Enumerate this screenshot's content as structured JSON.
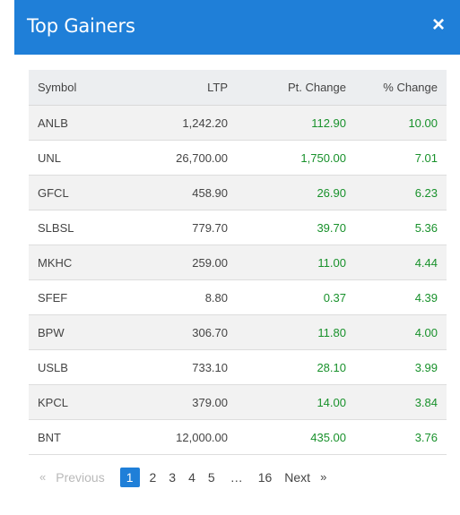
{
  "modal": {
    "title": "Top Gainers",
    "close_icon": "×"
  },
  "table": {
    "headers": [
      "Symbol",
      "LTP",
      "Pt. Change",
      "% Change"
    ],
    "rows": [
      {
        "symbol": "ANLB",
        "ltp": "1,242.20",
        "pt_change": "112.90",
        "pct_change": "10.00"
      },
      {
        "symbol": "UNL",
        "ltp": "26,700.00",
        "pt_change": "1,750.00",
        "pct_change": "7.01"
      },
      {
        "symbol": "GFCL",
        "ltp": "458.90",
        "pt_change": "26.90",
        "pct_change": "6.23"
      },
      {
        "symbol": "SLBSL",
        "ltp": "779.70",
        "pt_change": "39.70",
        "pct_change": "5.36"
      },
      {
        "symbol": "MKHC",
        "ltp": "259.00",
        "pt_change": "11.00",
        "pct_change": "4.44"
      },
      {
        "symbol": "SFEF",
        "ltp": "8.80",
        "pt_change": "0.37",
        "pct_change": "4.39"
      },
      {
        "symbol": "BPW",
        "ltp": "306.70",
        "pt_change": "11.80",
        "pct_change": "4.00"
      },
      {
        "symbol": "USLB",
        "ltp": "733.10",
        "pt_change": "28.10",
        "pct_change": "3.99"
      },
      {
        "symbol": "KPCL",
        "ltp": "379.00",
        "pt_change": "14.00",
        "pct_change": "3.84"
      },
      {
        "symbol": "BNT",
        "ltp": "12,000.00",
        "pt_change": "435.00",
        "pct_change": "3.76"
      }
    ]
  },
  "pagination": {
    "prev_arrow": "«",
    "prev_label": "Previous",
    "pages": [
      "1",
      "2",
      "3",
      "4",
      "5"
    ],
    "ellipsis": "…",
    "last_page": "16",
    "next_label": "Next",
    "next_arrow": "»",
    "active_page": "1"
  },
  "colors": {
    "header_bg": "#1f7fd8",
    "positive": "#18912b",
    "row_alt": "#f2f2f2"
  }
}
